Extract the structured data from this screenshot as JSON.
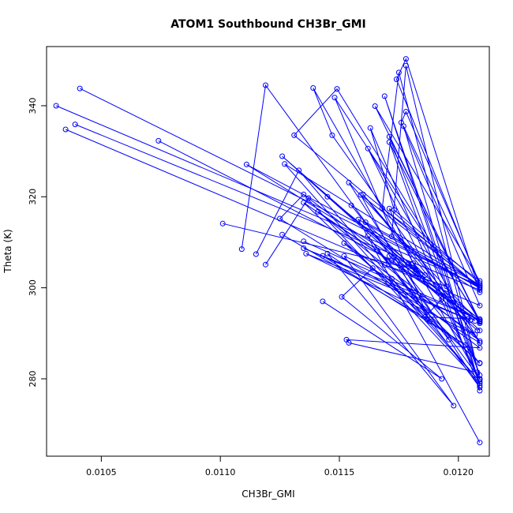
{
  "chart_data": {
    "type": "line",
    "title": "ATOM1 Southbound CH3Br_GMI",
    "xlabel": "CH3Br_GMI",
    "ylabel": "Theta (K)",
    "xlim": [
      0.01027,
      0.01213
    ],
    "ylim": [
      263,
      353
    ],
    "x_ticks": [
      {
        "value": 0.0105,
        "label": "0.0105"
      },
      {
        "value": 0.011,
        "label": "0.0110"
      },
      {
        "value": 0.0115,
        "label": "0.0115"
      },
      {
        "value": 0.012,
        "label": "0.0120"
      }
    ],
    "y_ticks": [
      {
        "value": 280,
        "label": "280"
      },
      {
        "value": 300,
        "label": "300"
      },
      {
        "value": 320,
        "label": "320"
      },
      {
        "value": 340,
        "label": "340"
      }
    ],
    "color": "#0000ff",
    "grid": false,
    "marker": "open-circle",
    "series": [
      {
        "segments": [
          [
            [
              0.01031,
              340.0
            ],
            [
              0.01209,
              300.5
            ],
            [
              0.01174,
              345.8
            ],
            [
              0.01178,
              350.3
            ],
            [
              0.01209,
              299.0
            ],
            [
              0.01172,
              311.3
            ],
            [
              0.01178,
              348.8
            ],
            [
              0.01209,
              280.0
            ],
            [
              0.01175,
              347.3
            ],
            [
              0.01168,
              317.5
            ],
            [
              0.01209,
              301.5
            ],
            [
              0.01165,
              339.9
            ],
            [
              0.01209,
              292.5
            ]
          ],
          [
            [
              0.01035,
              334.8
            ],
            [
              0.01209,
              296.1
            ],
            [
              0.01176,
              336.3
            ],
            [
              0.01178,
              338.7
            ],
            [
              0.01209,
              301.0
            ],
            [
              0.01173,
              317.1
            ],
            [
              0.01163,
              335.1
            ],
            [
              0.01209,
              279.0
            ],
            [
              0.01135,
              320.5
            ],
            [
              0.01125,
              315.2
            ],
            [
              0.01209,
              287.9
            ]
          ],
          [
            [
              0.01039,
              335.9
            ],
            [
              0.01209,
              299.5
            ],
            [
              0.01177,
              335.5
            ],
            [
              0.01209,
              278.5
            ],
            [
              0.01169,
              342.1
            ],
            [
              0.01209,
              280.8
            ],
            [
              0.01171,
              333.2
            ],
            [
              0.01209,
              292.7
            ],
            [
              0.01171,
              332.0
            ],
            [
              0.01209,
              277.4
            ]
          ],
          [
            [
              0.01041,
              343.8
            ],
            [
              0.01209,
              300.2
            ],
            [
              0.01159,
              320.4
            ],
            [
              0.01188,
              292.6
            ],
            [
              0.01148,
              341.8
            ],
            [
              0.01209,
              293.0
            ],
            [
              0.01145,
              320.0
            ],
            [
              0.01207,
              292.7
            ]
          ],
          [
            [
              0.01074,
              332.3
            ],
            [
              0.01172,
              306.0
            ],
            [
              0.01209,
              292.6
            ],
            [
              0.01149,
              343.7
            ],
            [
              0.01131,
              333.5
            ],
            [
              0.01209,
              299.9
            ],
            [
              0.01158,
              315.0
            ],
            [
              0.01209,
              266.0
            ]
          ],
          [
            [
              0.01101,
              314.1
            ],
            [
              0.01182,
              304.0
            ],
            [
              0.01111,
              327.1
            ],
            [
              0.01209,
              300.0
            ],
            [
              0.01171,
              317.4
            ],
            [
              0.01183,
              303.0
            ],
            [
              0.01126,
              328.9
            ],
            [
              0.01208,
              290.6
            ]
          ],
          [
            [
              0.01109,
              308.5
            ],
            [
              0.01119,
              344.5
            ],
            [
              0.01209,
              280.0
            ],
            [
              0.01139,
              343.9
            ],
            [
              0.01147,
              333.5
            ],
            [
              0.01209,
              287.9
            ],
            [
              0.01162,
              330.6
            ],
            [
              0.01209,
              279.8
            ]
          ],
          [
            [
              0.01115,
              307.4
            ],
            [
              0.01133,
              325.8
            ],
            [
              0.01209,
              279.4
            ],
            [
              0.01127,
              327.2
            ],
            [
              0.01209,
              300.6
            ],
            [
              0.01161,
              314.4
            ],
            [
              0.01209,
              290.6
            ]
          ],
          [
            [
              0.01119,
              305.1
            ],
            [
              0.01137,
              319.7
            ],
            [
              0.01166,
              308.2
            ],
            [
              0.01196,
              288.6
            ],
            [
              0.01162,
              311.4
            ],
            [
              0.01209,
              278.1
            ],
            [
              0.01154,
              323.1
            ],
            [
              0.01209,
              292.2
            ]
          ],
          [
            [
              0.01126,
              311.7
            ],
            [
              0.01187,
              293.0
            ],
            [
              0.01135,
              318.7
            ],
            [
              0.01209,
              292.5
            ],
            [
              0.01141,
              316.7
            ],
            [
              0.01209,
              288.3
            ],
            [
              0.0116,
              320.5
            ],
            [
              0.01204,
              293.1
            ]
          ],
          [
            [
              0.01135,
              310.2
            ],
            [
              0.01209,
              293.0
            ],
            [
              0.01135,
              308.7
            ],
            [
              0.01205,
              292.9
            ],
            [
              0.01136,
              307.5
            ],
            [
              0.01207,
              289.7
            ],
            [
              0.01152,
              309.8
            ],
            [
              0.01209,
              283.5
            ]
          ],
          [
            [
              0.01143,
              307.0
            ],
            [
              0.01203,
              287.4
            ],
            [
              0.01145,
              307.5
            ],
            [
              0.01198,
              274.1
            ],
            [
              0.01152,
              307.0
            ],
            [
              0.01172,
              302.0
            ],
            [
              0.01209,
              283.4
            ],
            [
              0.01155,
              318.1
            ]
          ],
          [
            [
              0.01143,
              297.0
            ],
            [
              0.01193,
              280.0
            ],
            [
              0.01151,
              298.0
            ],
            [
              0.01164,
              304.3
            ],
            [
              0.01209,
              286.8
            ],
            [
              0.01153,
              288.6
            ],
            [
              0.01154,
              287.9
            ],
            [
              0.01208,
              281.4
            ]
          ],
          [
            [
              0.01169,
              305.0
            ],
            [
              0.01195,
              300.3
            ],
            [
              0.01185,
              302.0
            ],
            [
              0.01171,
              307.0
            ],
            [
              0.01209,
              293.1
            ],
            [
              0.01186,
              293.6
            ],
            [
              0.01193,
              297.5
            ],
            [
              0.01179,
              305.2
            ],
            [
              0.01186,
              302.8
            ],
            [
              0.01181,
              305.4
            ]
          ]
        ]
      }
    ]
  }
}
